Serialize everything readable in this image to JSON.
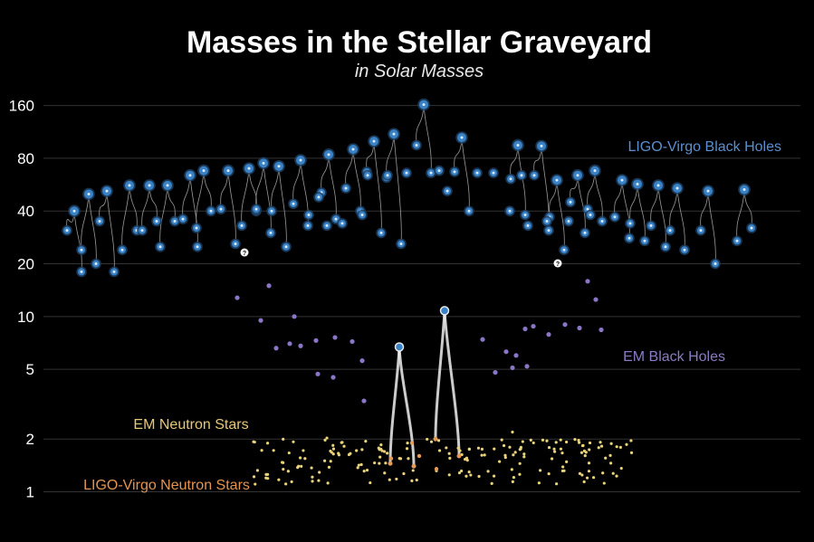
{
  "chart_data": {
    "type": "scatter",
    "title": "Masses in the Stellar Graveyard",
    "subtitle": "in Solar Masses",
    "y_scale": "log",
    "ylim": [
      0.8,
      200
    ],
    "y_ticks": [
      1,
      2,
      5,
      10,
      20,
      40,
      80,
      160
    ],
    "y_tick_labels": [
      "1",
      "2",
      "5",
      "10",
      "20",
      "40",
      "80",
      "160"
    ],
    "grid": true,
    "colors": {
      "ligo_bh": "#3a82c6",
      "em_bh": "#8a75c6",
      "em_ns": "#e8d27a",
      "ligo_ns": "#e59a55",
      "merger_line": "#9a9a9a",
      "ns_merger": "#f0f0f0",
      "grid": "#333333"
    },
    "series": [
      {
        "name": "LIGO-Virgo Black Holes",
        "label": "LIGO-Virgo Black Holes",
        "mergers": [
          [
            82,
            40,
            31,
            18
          ],
          [
            98,
            50,
            24,
            20
          ],
          [
            118,
            52,
            35,
            18
          ],
          [
            143,
            56,
            24,
            31
          ],
          [
            165,
            56,
            31,
            35
          ],
          [
            185,
            56,
            25,
            35
          ],
          [
            210,
            64,
            36,
            25
          ],
          [
            225,
            68,
            32,
            40
          ],
          [
            252,
            68,
            41,
            26
          ],
          [
            275,
            70,
            33,
            40
          ],
          [
            291,
            75,
            41,
            30
          ],
          [
            308,
            72,
            40,
            25
          ],
          [
            332,
            78,
            44,
            33
          ],
          [
            363,
            84,
            51,
            36
          ],
          [
            390,
            90,
            54,
            40
          ],
          [
            413,
            100,
            67,
            30
          ],
          [
            435,
            110,
            62,
            26
          ],
          [
            468,
            162,
            95,
            66
          ],
          [
            510,
            105,
            67,
            40
          ],
          [
            572,
            95,
            61,
            38
          ],
          [
            598,
            94,
            64,
            31
          ],
          [
            615,
            60,
            37,
            24
          ],
          [
            638,
            64,
            45,
            30
          ],
          [
            657,
            68,
            41,
            35
          ],
          [
            687,
            60,
            37,
            28
          ],
          [
            704,
            57,
            34,
            27
          ],
          [
            727,
            56,
            33,
            25
          ],
          [
            748,
            54,
            31,
            24
          ],
          [
            782,
            52,
            31,
            20
          ],
          [
            822,
            53,
            27,
            32
          ]
        ],
        "extra_points": [
          [
            341,
            38
          ],
          [
            352,
            48
          ],
          [
            361,
            33
          ],
          [
            378,
            34
          ],
          [
            400,
            38
          ],
          [
            406,
            64
          ],
          [
            428,
            64
          ],
          [
            449,
            66
          ],
          [
            485,
            68
          ],
          [
            494,
            52
          ],
          [
            527,
            66
          ],
          [
            545,
            66
          ],
          [
            563,
            40
          ],
          [
            576,
            64
          ],
          [
            583,
            33
          ],
          [
            604,
            35
          ],
          [
            628,
            35
          ],
          [
            652,
            38
          ]
        ]
      },
      {
        "name": "EM Black Holes",
        "label": "EM Black Holes",
        "points": [
          [
            262,
            12.8
          ],
          [
            297,
            15
          ],
          [
            288,
            9.5
          ],
          [
            325,
            10
          ],
          [
            305,
            6.6
          ],
          [
            320,
            7.0
          ],
          [
            332,
            6.8
          ],
          [
            349,
            7.3
          ],
          [
            370,
            7.6
          ],
          [
            389,
            7.2
          ],
          [
            400,
            5.6
          ],
          [
            351,
            4.7
          ],
          [
            368,
            4.5
          ],
          [
            402,
            3.3
          ],
          [
            533,
            7.4
          ],
          [
            559,
            6.3
          ],
          [
            570,
            6.0
          ],
          [
            582,
            5.2
          ],
          [
            580,
            8.5
          ],
          [
            589,
            8.8
          ],
          [
            606,
            7.9
          ],
          [
            624,
            9.0
          ],
          [
            640,
            8.6
          ],
          [
            649,
            15.9
          ],
          [
            658,
            12.5
          ],
          [
            664,
            8.4
          ],
          [
            547,
            4.8
          ],
          [
            566,
            5.1
          ]
        ]
      },
      {
        "name": "EM Neutron Stars",
        "label": "EM Neutron Stars",
        "count": 190
      },
      {
        "name": "LIGO-Virgo Neutron Stars",
        "label": "LIGO-Virgo Neutron Stars",
        "mergers": [
          [
            441,
            6.7,
            1.45,
            1.4
          ],
          [
            491,
            10.8,
            2.0,
            1.6
          ]
        ],
        "extra_points": [
          [
            432,
            1.55
          ],
          [
            455,
            1.9
          ],
          [
            482,
            1.35
          ],
          [
            463,
            1.6
          ]
        ]
      }
    ]
  }
}
